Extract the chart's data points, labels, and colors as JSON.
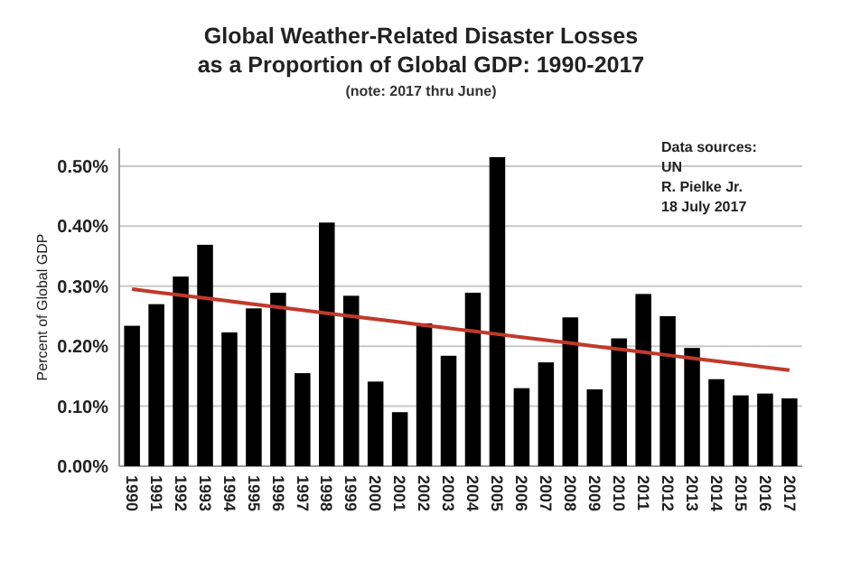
{
  "chart_data": {
    "type": "bar",
    "title": "Global Weather-Related Disaster Losses\nas a Proportion of Global GDP: 1990-2017",
    "subtitle": "(note: 2017 thru June)",
    "ylabel": "Percent of Global GDP",
    "annotations": [
      "Data sources:",
      "UN",
      "R. Pielke Jr.",
      "18 July 2017"
    ],
    "categories": [
      "1990",
      "1991",
      "1992",
      "1993",
      "1994",
      "1995",
      "1996",
      "1997",
      "1998",
      "1999",
      "2000",
      "2001",
      "2002",
      "2003",
      "2004",
      "2005",
      "2006",
      "2007",
      "2008",
      "2009",
      "2010",
      "2011",
      "2012",
      "2013",
      "2014",
      "2015",
      "2016",
      "2017"
    ],
    "series": [
      {
        "color": "#000000",
        "values": [
          0.234,
          0.27,
          0.316,
          0.369,
          0.223,
          0.263,
          0.289,
          0.155,
          0.406,
          0.284,
          0.141,
          0.09,
          0.238,
          0.184,
          0.289,
          0.515,
          0.13,
          0.173,
          0.248,
          0.128,
          0.213,
          0.287,
          0.25,
          0.197,
          0.145,
          0.118,
          0.121,
          0.113
        ]
      },
      {
        "type": "line",
        "color": "#c0392b",
        "values": [
          0.295,
          0.29,
          0.285,
          0.28,
          0.275,
          0.27,
          0.265,
          0.26,
          0.255,
          0.25,
          0.245,
          0.24,
          0.235,
          0.23,
          0.225,
          0.22,
          0.215,
          0.21,
          0.205,
          0.2,
          0.195,
          0.19,
          0.185,
          0.18,
          0.175,
          0.17,
          0.165,
          0.16
        ]
      }
    ],
    "ylim": [
      0,
      0.53
    ],
    "yticks": [
      {
        "value": 0,
        "label": "0.00%"
      },
      {
        "value": 0.1,
        "label": "0.10%"
      },
      {
        "value": 0.2,
        "label": "0.20%"
      },
      {
        "value": 0.3,
        "label": "0.30%"
      },
      {
        "value": 0.4,
        "label": "0.40%"
      },
      {
        "value": 0.5,
        "label": "0.50%"
      }
    ],
    "grid": "y"
  }
}
